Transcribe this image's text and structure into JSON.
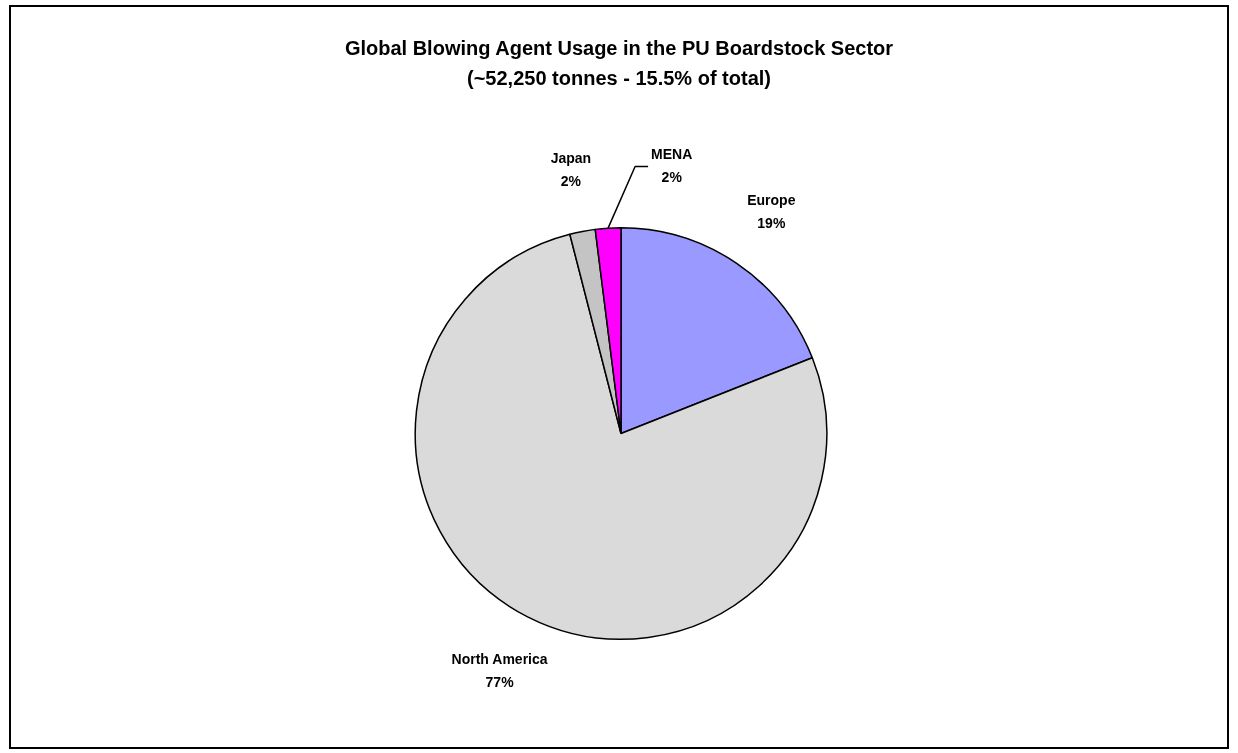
{
  "chart_data": {
    "type": "pie",
    "title": "Global Blowing Agent Usage in the PU Boardstock Sector",
    "subtitle": "(~52,250 tonnes - 15.5% of total)",
    "categories": [
      "Europe",
      "North America",
      "Japan",
      "MENA"
    ],
    "values": [
      19,
      77,
      2,
      2
    ],
    "colors": [
      "#9999ff",
      "#dadada",
      "#c4c4c4",
      "#ff00ff"
    ],
    "value_labels": [
      "19%",
      "77%",
      "2%",
      "2%"
    ],
    "legend": false
  }
}
